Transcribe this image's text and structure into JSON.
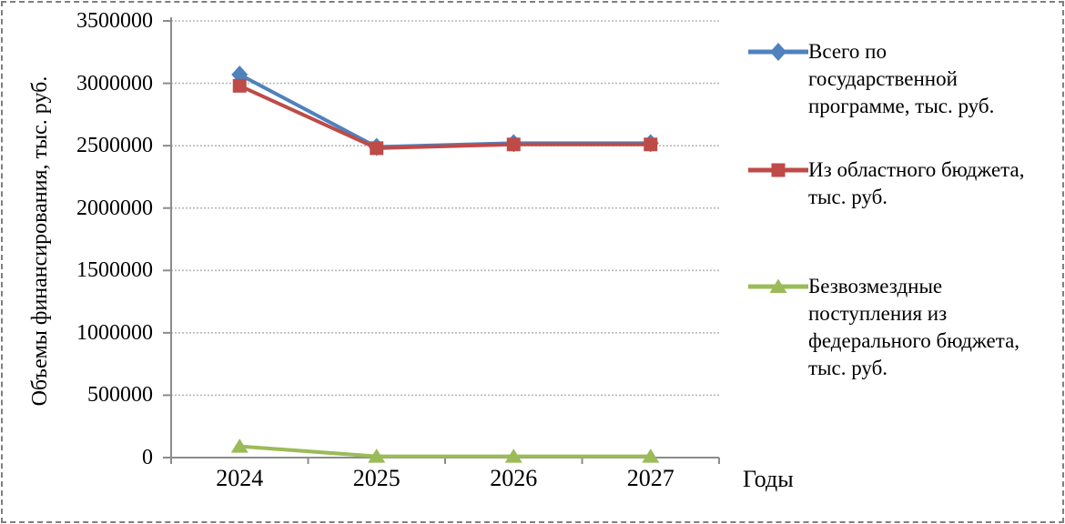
{
  "chart_data": {
    "type": "line",
    "title": "",
    "xlabel": "Годы",
    "ylabel": "Объемы финансирования, тыс. руб.",
    "categories": [
      "2024",
      "2025",
      "2026",
      "2027"
    ],
    "series": [
      {
        "name": "Всего по государственной программе, тыс. руб.",
        "color": "#4F81BD",
        "marker": "diamond",
        "values": [
          3070000,
          2490000,
          2520000,
          2520000
        ]
      },
      {
        "name": "Из областного бюджета, тыс. руб.",
        "color": "#BE4B48",
        "marker": "square",
        "values": [
          2980000,
          2480000,
          2510000,
          2510000
        ]
      },
      {
        "name": "Безвозмездные поступления из федерального бюджета, тыс. руб.",
        "color": "#9BBB59",
        "marker": "triangle",
        "values": [
          90000,
          10000,
          10000,
          10000
        ]
      }
    ],
    "ylim": [
      0,
      3500000
    ],
    "ytick_step": 500000,
    "ytick_labels": [
      "3500000",
      "3000000",
      "2500000",
      "2000000",
      "1500000",
      "1000000",
      "500000",
      "0"
    ],
    "grid": "horizontal-only",
    "legend_position": "right",
    "colors": {
      "gridline": "#b8b8b8",
      "axis": "#8c8c8c",
      "border": "#7f7f7f",
      "text": "#000000"
    }
  }
}
